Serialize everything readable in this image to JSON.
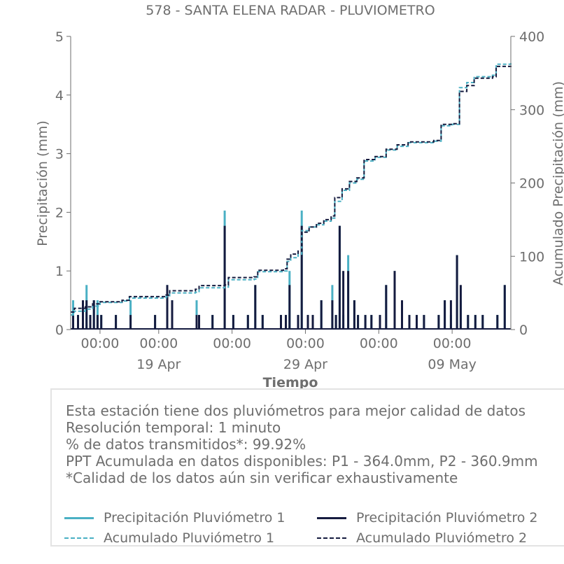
{
  "chart_data": {
    "type": "line",
    "title": "578 - SANTA ELENA RADAR - PLUVIOMETRO",
    "xlabel": "Tiempo",
    "ylabel": "Precipitación (mm)",
    "y2label": "Acumulado Precipitación (mm)",
    "ylim": [
      0,
      5
    ],
    "y2lim": [
      0,
      400
    ],
    "yticks": [
      "0",
      "1",
      "2",
      "3",
      "4",
      "5"
    ],
    "y2ticks": [
      "0",
      "100",
      "200",
      "300",
      "400"
    ],
    "xlim": [
      "2025-04-13",
      "2025-05-13"
    ],
    "xticks": [
      {
        "x": "2025-04-15",
        "label": "00:00",
        "sublabel": ""
      },
      {
        "x": "2025-04-19",
        "label": "00:00",
        "sublabel": "19 Apr"
      },
      {
        "x": "2025-04-24",
        "label": "00:00",
        "sublabel": ""
      },
      {
        "x": "2025-04-29",
        "label": "00:00",
        "sublabel": "29 Apr"
      },
      {
        "x": "2025-05-04",
        "label": "00:00",
        "sublabel": ""
      },
      {
        "x": "2025-05-09",
        "label": "00:00",
        "sublabel": "09 May"
      }
    ],
    "series": [
      {
        "name": "Precipitación Pluviómetro 1",
        "kind": "bar",
        "axis": "left",
        "color": "#4ab0c4",
        "points": [
          {
            "x": "2025-04-13 04:00",
            "y": 0.5
          },
          {
            "x": "2025-04-13 12:00",
            "y": 0.25
          },
          {
            "x": "2025-04-13 20:00",
            "y": 0.25
          },
          {
            "x": "2025-04-14 02:00",
            "y": 0.76
          },
          {
            "x": "2025-04-14 08:00",
            "y": 0.25
          },
          {
            "x": "2025-04-14 14:00",
            "y": 0.5
          },
          {
            "x": "2025-04-14 20:00",
            "y": 0.5
          },
          {
            "x": "2025-04-15 02:00",
            "y": 0.25
          },
          {
            "x": "2025-04-16 02:00",
            "y": 0.25
          },
          {
            "x": "2025-04-17 02:00",
            "y": 0.5
          },
          {
            "x": "2025-04-18 18:00",
            "y": 0.25
          },
          {
            "x": "2025-04-19 14:00",
            "y": 0.76
          },
          {
            "x": "2025-04-19 22:00",
            "y": 0.5
          },
          {
            "x": "2025-04-21 14:00",
            "y": 0.5
          },
          {
            "x": "2025-04-21 18:00",
            "y": 0.25
          },
          {
            "x": "2025-04-22 16:00",
            "y": 0.25
          },
          {
            "x": "2025-04-23 12:00",
            "y": 2.03
          },
          {
            "x": "2025-04-24 02:00",
            "y": 0.25
          },
          {
            "x": "2025-04-25 02:00",
            "y": 0.25
          },
          {
            "x": "2025-04-25 14:00",
            "y": 0.76
          },
          {
            "x": "2025-04-26 02:00",
            "y": 0.25
          },
          {
            "x": "2025-04-27 08:00",
            "y": 0.25
          },
          {
            "x": "2025-04-27 16:00",
            "y": 0.25
          },
          {
            "x": "2025-04-27 22:00",
            "y": 1.0
          },
          {
            "x": "2025-04-28 12:00",
            "y": 0.25
          },
          {
            "x": "2025-04-28 18:00",
            "y": 2.03
          },
          {
            "x": "2025-04-29 04:00",
            "y": 0.25
          },
          {
            "x": "2025-04-29 12:00",
            "y": 0.25
          },
          {
            "x": "2025-04-30 02:00",
            "y": 0.5
          },
          {
            "x": "2025-04-30 20:00",
            "y": 0.76
          },
          {
            "x": "2025-05-01 02:00",
            "y": 0.25
          },
          {
            "x": "2025-05-01 08:00",
            "y": 1.77
          },
          {
            "x": "2025-05-01 14:00",
            "y": 0.25
          },
          {
            "x": "2025-05-01 22:00",
            "y": 1.27
          },
          {
            "x": "2025-05-02 08:00",
            "y": 0.5
          },
          {
            "x": "2025-05-02 14:00",
            "y": 0.25
          },
          {
            "x": "2025-05-03 02:00",
            "y": 0.25
          },
          {
            "x": "2025-05-03 12:00",
            "y": 0.25
          },
          {
            "x": "2025-05-04 02:00",
            "y": 0.25
          },
          {
            "x": "2025-05-04 12:00",
            "y": 0.76
          },
          {
            "x": "2025-05-05 02:00",
            "y": 1.0
          },
          {
            "x": "2025-05-05 14:00",
            "y": 0.25
          },
          {
            "x": "2025-05-06 02:00",
            "y": 0.25
          },
          {
            "x": "2025-05-06 14:00",
            "y": 0.25
          },
          {
            "x": "2025-05-07 02:00",
            "y": 0.25
          },
          {
            "x": "2025-05-08 02:00",
            "y": 0.25
          },
          {
            "x": "2025-05-08 12:00",
            "y": 0.5
          },
          {
            "x": "2025-05-08 22:00",
            "y": 0.25
          },
          {
            "x": "2025-05-09 08:00",
            "y": 1.27
          },
          {
            "x": "2025-05-09 14:00",
            "y": 0.5
          },
          {
            "x": "2025-05-10 02:00",
            "y": 0.25
          },
          {
            "x": "2025-05-10 14:00",
            "y": 0.25
          },
          {
            "x": "2025-05-11 02:00",
            "y": 0.25
          },
          {
            "x": "2025-05-12 02:00",
            "y": 0.25
          },
          {
            "x": "2025-05-12 14:00",
            "y": 0.76
          }
        ]
      },
      {
        "name": "Precipitación Pluviómetro 2",
        "kind": "bar",
        "axis": "left",
        "color": "#151b3f",
        "points": [
          {
            "x": "2025-04-13 04:00",
            "y": 0.25
          },
          {
            "x": "2025-04-13 12:00",
            "y": 0.25
          },
          {
            "x": "2025-04-13 20:00",
            "y": 0.5
          },
          {
            "x": "2025-04-14 02:00",
            "y": 0.5
          },
          {
            "x": "2025-04-14 08:00",
            "y": 0.25
          },
          {
            "x": "2025-04-14 14:00",
            "y": 0.5
          },
          {
            "x": "2025-04-14 20:00",
            "y": 0.25
          },
          {
            "x": "2025-04-15 02:00",
            "y": 0.25
          },
          {
            "x": "2025-04-16 02:00",
            "y": 0.25
          },
          {
            "x": "2025-04-17 02:00",
            "y": 0.25
          },
          {
            "x": "2025-04-18 18:00",
            "y": 0.25
          },
          {
            "x": "2025-04-19 14:00",
            "y": 0.76
          },
          {
            "x": "2025-04-19 22:00",
            "y": 0.5
          },
          {
            "x": "2025-04-21 14:00",
            "y": 0.25
          },
          {
            "x": "2025-04-21 18:00",
            "y": 0.25
          },
          {
            "x": "2025-04-22 16:00",
            "y": 0.25
          },
          {
            "x": "2025-04-23 12:00",
            "y": 1.77
          },
          {
            "x": "2025-04-24 02:00",
            "y": 0.25
          },
          {
            "x": "2025-04-25 02:00",
            "y": 0.25
          },
          {
            "x": "2025-04-25 14:00",
            "y": 0.76
          },
          {
            "x": "2025-04-26 02:00",
            "y": 0.25
          },
          {
            "x": "2025-04-27 08:00",
            "y": 0.25
          },
          {
            "x": "2025-04-27 16:00",
            "y": 0.25
          },
          {
            "x": "2025-04-27 22:00",
            "y": 0.76
          },
          {
            "x": "2025-04-28 12:00",
            "y": 0.25
          },
          {
            "x": "2025-04-28 18:00",
            "y": 1.77
          },
          {
            "x": "2025-04-29 04:00",
            "y": 0.25
          },
          {
            "x": "2025-04-29 12:00",
            "y": 0.25
          },
          {
            "x": "2025-04-30 02:00",
            "y": 0.5
          },
          {
            "x": "2025-04-30 20:00",
            "y": 0.5
          },
          {
            "x": "2025-05-01 02:00",
            "y": 0.25
          },
          {
            "x": "2025-05-01 08:00",
            "y": 1.77
          },
          {
            "x": "2025-05-01 14:00",
            "y": 1.0
          },
          {
            "x": "2025-05-01 22:00",
            "y": 1.0
          },
          {
            "x": "2025-05-02 08:00",
            "y": 0.5
          },
          {
            "x": "2025-05-02 14:00",
            "y": 0.25
          },
          {
            "x": "2025-05-03 02:00",
            "y": 0.25
          },
          {
            "x": "2025-05-03 12:00",
            "y": 0.25
          },
          {
            "x": "2025-05-04 02:00",
            "y": 0.25
          },
          {
            "x": "2025-05-04 12:00",
            "y": 0.76
          },
          {
            "x": "2025-05-05 02:00",
            "y": 1.0
          },
          {
            "x": "2025-05-05 14:00",
            "y": 0.5
          },
          {
            "x": "2025-05-06 02:00",
            "y": 0.25
          },
          {
            "x": "2025-05-06 14:00",
            "y": 0.25
          },
          {
            "x": "2025-05-07 02:00",
            "y": 0.25
          },
          {
            "x": "2025-05-08 02:00",
            "y": 0.25
          },
          {
            "x": "2025-05-08 12:00",
            "y": 0.5
          },
          {
            "x": "2025-05-08 22:00",
            "y": 0.5
          },
          {
            "x": "2025-05-09 08:00",
            "y": 1.27
          },
          {
            "x": "2025-05-09 14:00",
            "y": 0.76
          },
          {
            "x": "2025-05-10 02:00",
            "y": 0.25
          },
          {
            "x": "2025-05-10 14:00",
            "y": 0.25
          },
          {
            "x": "2025-05-11 02:00",
            "y": 0.25
          },
          {
            "x": "2025-05-12 02:00",
            "y": 0.25
          },
          {
            "x": "2025-05-12 14:00",
            "y": 0.76
          }
        ]
      },
      {
        "name": "Acumulado Pluviómetro 1",
        "kind": "line",
        "axis": "right",
        "dash": true,
        "color": "#4ab0c4",
        "points": [
          {
            "x": "2025-04-13 00:00",
            "y": 20
          },
          {
            "x": "2025-04-13 06:00",
            "y": 25
          },
          {
            "x": "2025-04-14 00:00",
            "y": 28
          },
          {
            "x": "2025-04-14 12:00",
            "y": 32
          },
          {
            "x": "2025-04-15 00:00",
            "y": 37
          },
          {
            "x": "2025-04-16 12:00",
            "y": 39
          },
          {
            "x": "2025-04-17 00:00",
            "y": 43
          },
          {
            "x": "2025-04-19 12:00",
            "y": 45
          },
          {
            "x": "2025-04-19 18:00",
            "y": 50
          },
          {
            "x": "2025-04-21 12:00",
            "y": 51
          },
          {
            "x": "2025-04-21 18:00",
            "y": 57
          },
          {
            "x": "2025-04-23 12:00",
            "y": 58
          },
          {
            "x": "2025-04-23 18:00",
            "y": 68
          },
          {
            "x": "2025-04-25 12:00",
            "y": 69
          },
          {
            "x": "2025-04-25 18:00",
            "y": 79
          },
          {
            "x": "2025-04-27 12:00",
            "y": 80
          },
          {
            "x": "2025-04-27 18:00",
            "y": 93
          },
          {
            "x": "2025-04-28 00:00",
            "y": 98
          },
          {
            "x": "2025-04-28 12:00",
            "y": 103
          },
          {
            "x": "2025-04-28 18:00",
            "y": 135
          },
          {
            "x": "2025-04-29 06:00",
            "y": 140
          },
          {
            "x": "2025-04-29 18:00",
            "y": 143
          },
          {
            "x": "2025-04-30 06:00",
            "y": 148
          },
          {
            "x": "2025-04-30 18:00",
            "y": 152
          },
          {
            "x": "2025-05-01 00:00",
            "y": 175
          },
          {
            "x": "2025-05-01 12:00",
            "y": 190
          },
          {
            "x": "2025-05-02 00:00",
            "y": 200
          },
          {
            "x": "2025-05-02 12:00",
            "y": 205
          },
          {
            "x": "2025-05-03 00:00",
            "y": 230
          },
          {
            "x": "2025-05-03 18:00",
            "y": 235
          },
          {
            "x": "2025-05-04 12:00",
            "y": 245
          },
          {
            "x": "2025-05-05 06:00",
            "y": 250
          },
          {
            "x": "2025-05-06 00:00",
            "y": 255
          },
          {
            "x": "2025-05-07 18:00",
            "y": 257
          },
          {
            "x": "2025-05-08 06:00",
            "y": 278
          },
          {
            "x": "2025-05-09 00:00",
            "y": 280
          },
          {
            "x": "2025-05-09 12:00",
            "y": 330
          },
          {
            "x": "2025-05-10 00:00",
            "y": 337
          },
          {
            "x": "2025-05-10 12:00",
            "y": 345
          },
          {
            "x": "2025-05-11 18:00",
            "y": 347
          },
          {
            "x": "2025-05-12 00:00",
            "y": 362
          },
          {
            "x": "2025-05-13 00:00",
            "y": 364
          }
        ]
      },
      {
        "name": "Acumulado Pluviómetro 2",
        "kind": "line",
        "axis": "right",
        "dash": true,
        "color": "#151b3f",
        "points": [
          {
            "x": "2025-04-13 00:00",
            "y": 24
          },
          {
            "x": "2025-04-13 06:00",
            "y": 29
          },
          {
            "x": "2025-04-14 00:00",
            "y": 31
          },
          {
            "x": "2025-04-14 12:00",
            "y": 35
          },
          {
            "x": "2025-04-15 00:00",
            "y": 38
          },
          {
            "x": "2025-04-16 12:00",
            "y": 40
          },
          {
            "x": "2025-04-17 00:00",
            "y": 45
          },
          {
            "x": "2025-04-19 12:00",
            "y": 47
          },
          {
            "x": "2025-04-19 18:00",
            "y": 53
          },
          {
            "x": "2025-04-21 12:00",
            "y": 55
          },
          {
            "x": "2025-04-21 18:00",
            "y": 60
          },
          {
            "x": "2025-04-23 12:00",
            "y": 61
          },
          {
            "x": "2025-04-23 18:00",
            "y": 71
          },
          {
            "x": "2025-04-25 12:00",
            "y": 72
          },
          {
            "x": "2025-04-25 18:00",
            "y": 81
          },
          {
            "x": "2025-04-27 12:00",
            "y": 83
          },
          {
            "x": "2025-04-27 18:00",
            "y": 96
          },
          {
            "x": "2025-04-28 00:00",
            "y": 103
          },
          {
            "x": "2025-04-28 12:00",
            "y": 107
          },
          {
            "x": "2025-04-28 18:00",
            "y": 133
          },
          {
            "x": "2025-04-29 06:00",
            "y": 140
          },
          {
            "x": "2025-04-29 18:00",
            "y": 145
          },
          {
            "x": "2025-04-30 06:00",
            "y": 150
          },
          {
            "x": "2025-04-30 18:00",
            "y": 155
          },
          {
            "x": "2025-05-01 00:00",
            "y": 180
          },
          {
            "x": "2025-05-01 12:00",
            "y": 192
          },
          {
            "x": "2025-05-02 00:00",
            "y": 202
          },
          {
            "x": "2025-05-02 12:00",
            "y": 207
          },
          {
            "x": "2025-05-03 00:00",
            "y": 232
          },
          {
            "x": "2025-05-03 18:00",
            "y": 236
          },
          {
            "x": "2025-05-04 12:00",
            "y": 246
          },
          {
            "x": "2025-05-05 06:00",
            "y": 252
          },
          {
            "x": "2025-05-06 00:00",
            "y": 256
          },
          {
            "x": "2025-05-07 18:00",
            "y": 258
          },
          {
            "x": "2025-05-08 06:00",
            "y": 280
          },
          {
            "x": "2025-05-09 00:00",
            "y": 281
          },
          {
            "x": "2025-05-09 12:00",
            "y": 325
          },
          {
            "x": "2025-05-10 00:00",
            "y": 333
          },
          {
            "x": "2025-05-10 12:00",
            "y": 343
          },
          {
            "x": "2025-05-11 18:00",
            "y": 345
          },
          {
            "x": "2025-05-12 00:00",
            "y": 359
          },
          {
            "x": "2025-05-13 00:00",
            "y": 360.9
          }
        ]
      }
    ],
    "axis_color": "#6e6e6e",
    "text_color": "#6e6e6e",
    "grid": false
  },
  "info": {
    "lines": [
      "Esta estación tiene dos pluviómetros para mejor calidad de datos",
      "Resolución temporal: 1 minuto",
      "% de datos transmitidos*: 99.92%",
      "PPT Acumulada en datos disponibles: P1 - 364.0mm, P2 - 360.9mm",
      "*Calidad de los datos aún sin verificar exhaustivamente"
    ]
  },
  "legend": {
    "items": [
      {
        "label": "Precipitación Pluviómetro 1",
        "color": "#4ab0c4",
        "style": "solid"
      },
      {
        "label": "Precipitación Pluviómetro 2",
        "color": "#151b3f",
        "style": "solid"
      },
      {
        "label": "Acumulado Pluviómetro 1",
        "color": "#4ab0c4",
        "style": "dashed"
      },
      {
        "label": "Acumulado Pluviómetro 2",
        "color": "#151b3f",
        "style": "dashed"
      }
    ]
  }
}
